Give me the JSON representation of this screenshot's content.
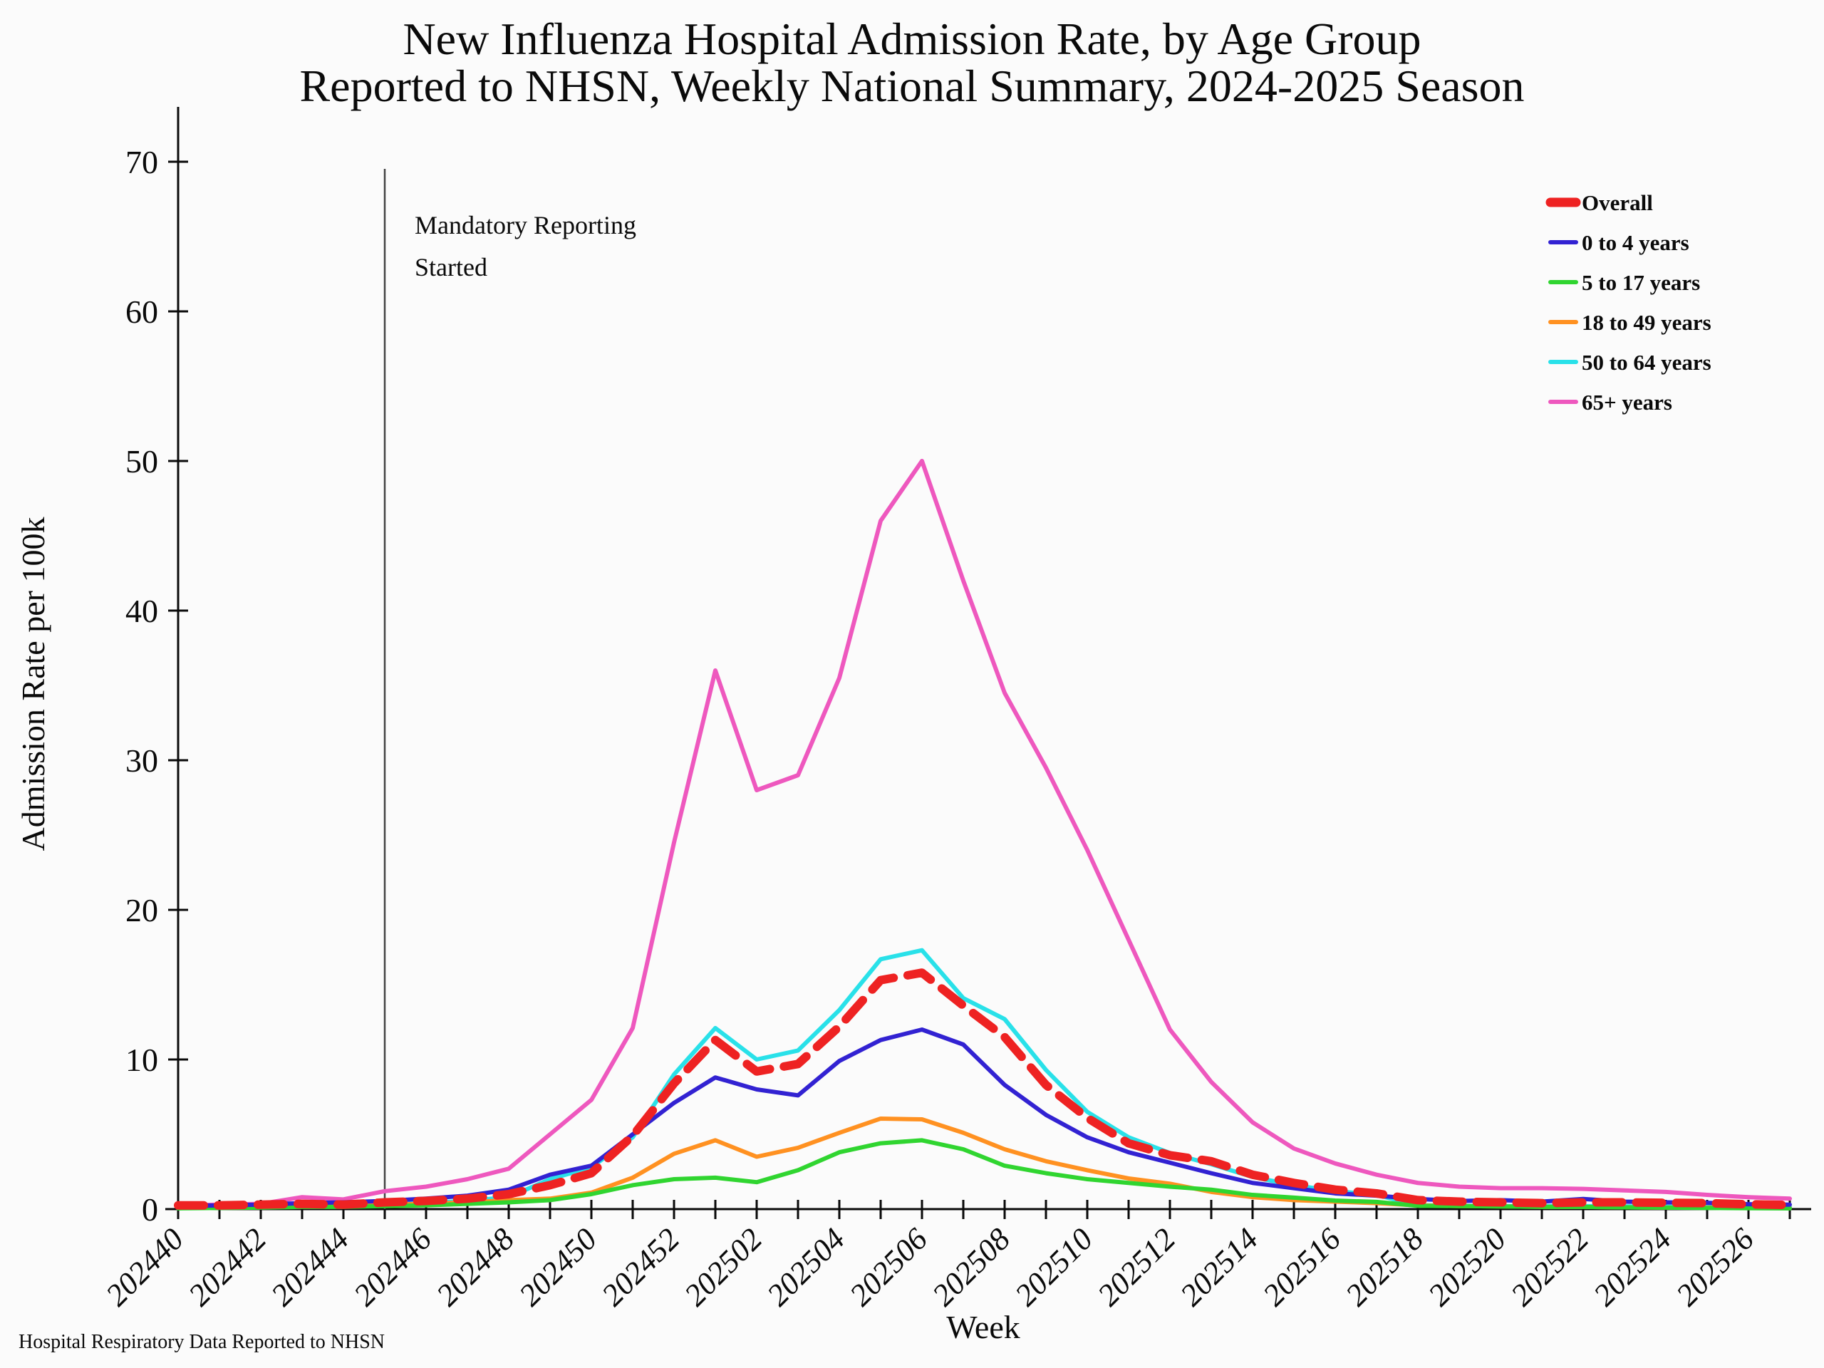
{
  "figure": {
    "title_line1": "New Influenza Hospital Admission Rate, by Age Group",
    "title_line2": "Reported to NHSN, Weekly National Summary, 2024-2025 Season",
    "footer": "Hospital Respiratory Data Reported to NHSN",
    "annotation": {
      "line1": "Mandatory Reporting",
      "line2": "Started",
      "week": "202445"
    }
  },
  "chart_data": {
    "type": "line",
    "title": "New Influenza Hospital Admission Rate, by Age Group Reported to NHSN, Weekly National Summary, 2024-2025 Season",
    "xlabel": "Week",
    "ylabel": "Admission Rate per 100k",
    "ylim": [
      0,
      70
    ],
    "yticks": [
      0,
      10,
      20,
      30,
      40,
      50,
      60,
      70
    ],
    "grid": false,
    "legend_position": "top-right",
    "x_label_step": 2,
    "x": [
      "202440",
      "202441",
      "202442",
      "202443",
      "202444",
      "202445",
      "202446",
      "202447",
      "202448",
      "202449",
      "202450",
      "202451",
      "202452",
      "202501",
      "202502",
      "202503",
      "202504",
      "202505",
      "202506",
      "202507",
      "202508",
      "202509",
      "202510",
      "202511",
      "202512",
      "202513",
      "202514",
      "202515",
      "202516",
      "202517",
      "202518",
      "202519",
      "202520",
      "202521",
      "202522",
      "202523",
      "202524",
      "202525",
      "202526",
      "202527"
    ],
    "series": [
      {
        "name": "Overall",
        "color": "#ee2222",
        "style": "dashed",
        "width": 12,
        "values": [
          0.25,
          0.25,
          0.3,
          0.35,
          0.3,
          0.45,
          0.55,
          0.7,
          1.0,
          1.6,
          2.4,
          4.9,
          8.4,
          11.3,
          9.2,
          9.7,
          12.2,
          15.3,
          15.8,
          13.6,
          11.5,
          8.3,
          6.1,
          4.4,
          3.6,
          3.2,
          2.3,
          1.75,
          1.3,
          1.05,
          0.6,
          0.5,
          0.45,
          0.4,
          0.45,
          0.45,
          0.42,
          0.4,
          0.32,
          0.28
        ]
      },
      {
        "name": "0 to 4 years",
        "color": "#3222d2",
        "style": "solid",
        "width": 6,
        "values": [
          0.2,
          0.25,
          0.3,
          0.4,
          0.45,
          0.55,
          0.7,
          0.9,
          1.3,
          2.3,
          2.9,
          5.0,
          7.1,
          8.8,
          8.0,
          7.6,
          9.9,
          11.3,
          12.0,
          11.0,
          8.3,
          6.3,
          4.8,
          3.8,
          3.1,
          2.4,
          1.75,
          1.4,
          1.05,
          0.9,
          0.68,
          0.54,
          0.6,
          0.5,
          0.68,
          0.5,
          0.45,
          0.42,
          0.33,
          0.3
        ]
      },
      {
        "name": "5 to 17 years",
        "color": "#30d530",
        "style": "solid",
        "width": 6,
        "values": [
          0.05,
          0.08,
          0.1,
          0.15,
          0.15,
          0.2,
          0.25,
          0.35,
          0.45,
          0.6,
          1.0,
          1.6,
          2.0,
          2.1,
          1.8,
          2.6,
          3.8,
          4.4,
          4.6,
          4.0,
          2.9,
          2.4,
          2.0,
          1.75,
          1.5,
          1.3,
          0.95,
          0.77,
          0.57,
          0.48,
          0.22,
          0.2,
          0.18,
          0.15,
          0.15,
          0.12,
          0.1,
          0.08,
          0.06,
          0.05
        ]
      },
      {
        "name": "18 to 49 years",
        "color": "#ff9121",
        "style": "solid",
        "width": 6,
        "values": [
          0.1,
          0.1,
          0.15,
          0.2,
          0.2,
          0.3,
          0.35,
          0.45,
          0.6,
          0.7,
          1.1,
          2.1,
          3.7,
          4.6,
          3.5,
          4.1,
          5.1,
          6.05,
          6.0,
          5.1,
          4.0,
          3.2,
          2.6,
          2.05,
          1.7,
          1.15,
          0.8,
          0.6,
          0.5,
          0.4,
          0.25,
          0.2,
          0.18,
          0.15,
          0.15,
          0.12,
          0.1,
          0.1,
          0.08,
          0.07
        ]
      },
      {
        "name": "50 to 64 years",
        "color": "#29e1e9",
        "style": "solid",
        "width": 6,
        "values": [
          0.1,
          0.12,
          0.15,
          0.2,
          0.25,
          0.3,
          0.4,
          0.55,
          0.8,
          2.0,
          2.8,
          4.8,
          9.0,
          12.1,
          10.0,
          10.6,
          13.3,
          16.7,
          17.3,
          14.1,
          12.7,
          9.3,
          6.5,
          4.8,
          3.75,
          3.0,
          2.15,
          1.6,
          1.2,
          0.95,
          0.26,
          0.22,
          0.2,
          0.2,
          0.2,
          0.18,
          0.16,
          0.15,
          0.15,
          0.14
        ]
      },
      {
        "name": "65+ years",
        "color": "#ee58be",
        "style": "solid",
        "width": 6,
        "values": [
          0.25,
          0.3,
          0.35,
          0.8,
          0.65,
          1.2,
          1.5,
          2.0,
          2.7,
          5.0,
          7.3,
          12.1,
          24.5,
          36.0,
          28.0,
          29.0,
          35.5,
          46.0,
          50.0,
          42.0,
          34.5,
          29.5,
          24.0,
          18.0,
          12.0,
          8.5,
          5.8,
          4.05,
          3.05,
          2.3,
          1.75,
          1.5,
          1.4,
          1.4,
          1.35,
          1.25,
          1.15,
          0.95,
          0.8,
          0.7
        ]
      }
    ]
  }
}
